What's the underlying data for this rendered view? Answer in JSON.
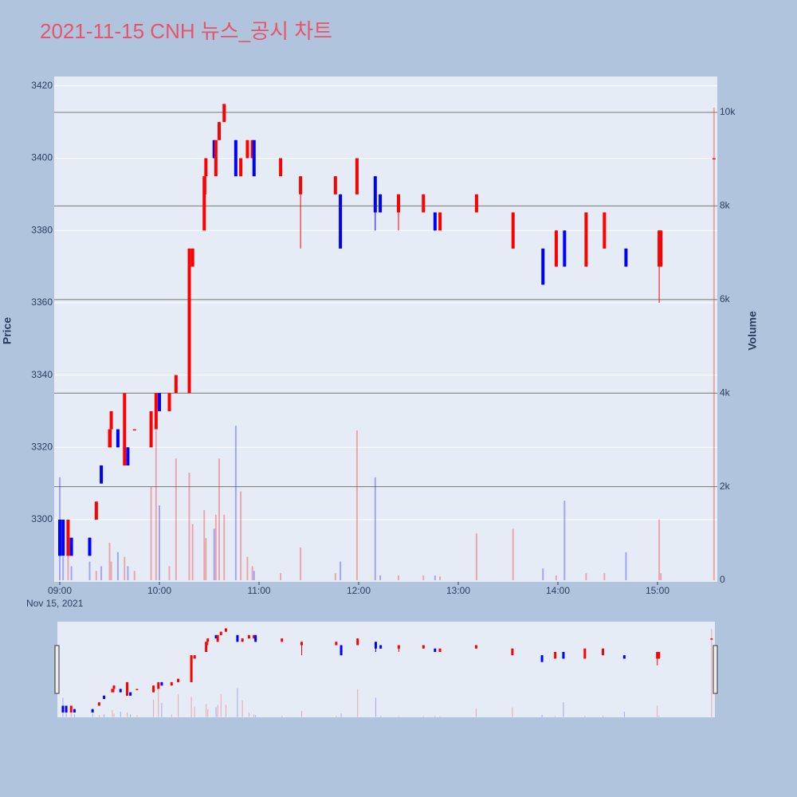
{
  "chart_data": {
    "type": "candlestick",
    "title": "2021-11-15 CNH 뉴스_공시 차트",
    "ylabel": "Price",
    "y2label": "Volume",
    "x": [
      "2021-11-15 09:00",
      "2021-11-15 09:02",
      "2021-11-15 09:05",
      "2021-11-15 09:07",
      "2021-11-15 09:18",
      "2021-11-15 09:22",
      "2021-11-15 09:25",
      "2021-11-15 09:30",
      "2021-11-15 09:31",
      "2021-11-15 09:35",
      "2021-11-15 09:39",
      "2021-11-15 09:41",
      "2021-11-15 09:45",
      "2021-11-15 09:55",
      "2021-11-15 09:58",
      "2021-11-15 10:00",
      "2021-11-15 10:06",
      "2021-11-15 10:10",
      "2021-11-15 10:18",
      "2021-11-15 10:20",
      "2021-11-15 10:27",
      "2021-11-15 10:28",
      "2021-11-15 10:33",
      "2021-11-15 10:34",
      "2021-11-15 10:36",
      "2021-11-15 10:39",
      "2021-11-15 10:46",
      "2021-11-15 10:49",
      "2021-11-15 10:53",
      "2021-11-15 10:56",
      "2021-11-15 10:57",
      "2021-11-15 11:13",
      "2021-11-15 11:25",
      "2021-11-15 11:46",
      "2021-11-15 11:49",
      "2021-11-15 11:59",
      "2021-11-15 12:10",
      "2021-11-15 12:13",
      "2021-11-15 12:24",
      "2021-11-15 12:39",
      "2021-11-15 12:46",
      "2021-11-15 12:49",
      "2021-11-15 13:11",
      "2021-11-15 13:33",
      "2021-11-15 13:51",
      "2021-11-15 13:59",
      "2021-11-15 14:04",
      "2021-11-15 14:17",
      "2021-11-15 14:28",
      "2021-11-15 14:41",
      "2021-11-15 15:01",
      "2021-11-15 15:02",
      "2021-11-15 15:34"
    ],
    "open": [
      3300,
      3300,
      3290,
      3295,
      3295,
      3300,
      3315,
      3320,
      3325,
      3325,
      3315,
      3320,
      3325,
      3320,
      3325,
      3335,
      3330,
      3335,
      3335,
      3370,
      3380,
      3395,
      3405,
      3395,
      3405,
      3410,
      3405,
      3395,
      3400,
      3400,
      3405,
      3395,
      3390,
      3390,
      3390,
      3390,
      3395,
      3390,
      3385,
      3385,
      3385,
      3380,
      3385,
      3375,
      3375,
      3370,
      3380,
      3370,
      3375,
      3375,
      3370,
      3370,
      3400
    ],
    "high": [
      3300,
      3300,
      3300,
      3295,
      3295,
      3305,
      3315,
      3325,
      3330,
      3325,
      3335,
      3320,
      3325,
      3330,
      3335,
      3335,
      3335,
      3340,
      3375,
      3375,
      3395,
      3400,
      3405,
      3405,
      3410,
      3415,
      3405,
      3400,
      3405,
      3405,
      3405,
      3400,
      3395,
      3395,
      3390,
      3400,
      3395,
      3390,
      3390,
      3390,
      3385,
      3385,
      3390,
      3385,
      3375,
      3380,
      3380,
      3385,
      3385,
      3375,
      3380,
      3380,
      3400
    ],
    "low": [
      3290,
      3290,
      3290,
      3290,
      3290,
      3300,
      3310,
      3320,
      3320,
      3320,
      3315,
      3315,
      3325,
      3320,
      3325,
      3330,
      3330,
      3335,
      3335,
      3370,
      3380,
      3390,
      3400,
      3395,
      3405,
      3410,
      3395,
      3395,
      3400,
      3400,
      3395,
      3395,
      3375,
      3390,
      3375,
      3390,
      3380,
      3385,
      3380,
      3385,
      3380,
      3380,
      3385,
      3375,
      3365,
      3370,
      3370,
      3370,
      3375,
      3370,
      3360,
      3370,
      3400
    ],
    "close": [
      3290,
      3290,
      3300,
      3290,
      3290,
      3305,
      3310,
      3325,
      3330,
      3320,
      3335,
      3315,
      3325,
      3330,
      3335,
      3330,
      3335,
      3340,
      3375,
      3375,
      3395,
      3400,
      3400,
      3405,
      3410,
      3415,
      3395,
      3400,
      3405,
      3405,
      3395,
      3400,
      3395,
      3395,
      3375,
      3400,
      3385,
      3385,
      3390,
      3390,
      3380,
      3385,
      3390,
      3385,
      3365,
      3380,
      3370,
      3385,
      3385,
      3370,
      3380,
      3380,
      3400
    ],
    "volume": [
      2200,
      500,
      700,
      300,
      400,
      200,
      300,
      800,
      400,
      600,
      500,
      300,
      200,
      2000,
      3200,
      1600,
      300,
      2600,
      2300,
      1200,
      1500,
      900,
      1100,
      1400,
      2600,
      1400,
      3300,
      1900,
      500,
      300,
      200,
      150,
      700,
      150,
      400,
      3200,
      2200,
      100,
      100,
      100,
      100,
      80,
      1000,
      1100,
      250,
      100,
      1700,
      150,
      150,
      600,
      1300,
      150,
      10100
    ],
    "increasing_color": "#ff0000",
    "decreasing_color": "#0000ff",
    "xlim": [
      "2021-11-15 08:56:38",
      "2021-11-15 15:36:00"
    ],
    "xticks": [
      {
        "value": "2021-11-15 09:00",
        "label": "09:00"
      },
      {
        "value": "2021-11-15 10:00",
        "label": "10:00"
      },
      {
        "value": "2021-11-15 11:00",
        "label": "11:00"
      },
      {
        "value": "2021-11-15 12:00",
        "label": "12:00"
      },
      {
        "value": "2021-11-15 13:00",
        "label": "13:00"
      },
      {
        "value": "2021-11-15 14:00",
        "label": "14:00"
      },
      {
        "value": "2021-11-15 15:00",
        "label": "15:00"
      }
    ],
    "x_date_label": "Nov 15, 2021",
    "ylim": [
      3282.8,
      3422.6
    ],
    "yticks": [
      3300,
      3320,
      3340,
      3360,
      3380,
      3400,
      3420
    ],
    "y2lim": [
      -34,
      10767
    ],
    "y2ticks": [
      0,
      {
        "value": 2000,
        "label": "2k"
      },
      {
        "value": 4000,
        "label": "4k"
      },
      {
        "value": 6000,
        "label": "6k"
      },
      {
        "value": 8000,
        "label": "8k"
      },
      {
        "value": 10000,
        "label": "10k"
      }
    ],
    "grid": true,
    "rangeslider": true
  }
}
